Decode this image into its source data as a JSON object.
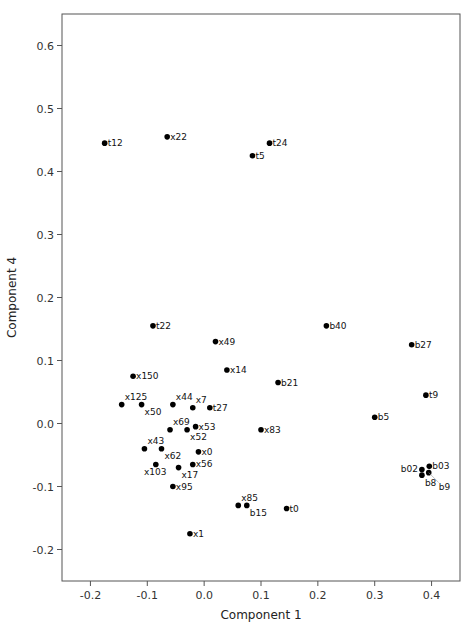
{
  "chart_data": {
    "type": "scatter",
    "x_label": "Component 1",
    "y_label": "Component 4",
    "labels": [
      "t12",
      "x22",
      "t24",
      "t5",
      "t22",
      "x49",
      "x14",
      "x150",
      "x125",
      "x50",
      "x44",
      "x7",
      "t27",
      "b21",
      "b40",
      "b27",
      "b5",
      "t9",
      "x69",
      "x52",
      "x53",
      "x43",
      "x62",
      "x0",
      "x103",
      "x17",
      "x56",
      "x83",
      "x95",
      "x85",
      "b15",
      "t0",
      "x1",
      "b02",
      "b03",
      "b8",
      "b9"
    ],
    "x": [
      -0.175,
      -0.065,
      0.115,
      0.085,
      -0.09,
      0.02,
      0.04,
      -0.125,
      -0.145,
      -0.11,
      -0.055,
      -0.02,
      0.01,
      0.13,
      0.215,
      0.365,
      0.3,
      0.39,
      -0.06,
      -0.03,
      -0.015,
      -0.105,
      -0.075,
      -0.01,
      -0.085,
      -0.045,
      -0.02,
      0.1,
      -0.055,
      0.06,
      0.075,
      0.145,
      -0.025,
      0.383,
      0.396,
      0.383,
      0.395
    ],
    "values": [
      0.445,
      0.455,
      0.445,
      0.425,
      0.155,
      0.13,
      0.085,
      0.075,
      0.03,
      0.03,
      0.03,
      0.025,
      0.025,
      0.065,
      0.155,
      0.125,
      0.01,
      0.045,
      -0.01,
      -0.01,
      -0.005,
      -0.04,
      -0.04,
      -0.045,
      -0.065,
      -0.07,
      -0.065,
      -0.01,
      -0.1,
      -0.13,
      -0.13,
      -0.135,
      -0.175,
      -0.073,
      -0.068,
      -0.082,
      -0.078
    ],
    "color": "black",
    "xlim": [
      -0.25,
      0.45
    ],
    "ylim": [
      -0.25,
      0.65
    ],
    "xticks": [
      -0.2,
      -0.1,
      {
        "value": 0.0,
        "label": "0.0"
      },
      0.1,
      0.2,
      0.3,
      0.4
    ],
    "yticks": [
      -0.2,
      -0.1,
      {
        "value": 0.0,
        "label": "0.0"
      },
      0.1,
      0.2,
      0.3,
      0.4,
      0.5,
      0.6
    ],
    "grid": false
  }
}
